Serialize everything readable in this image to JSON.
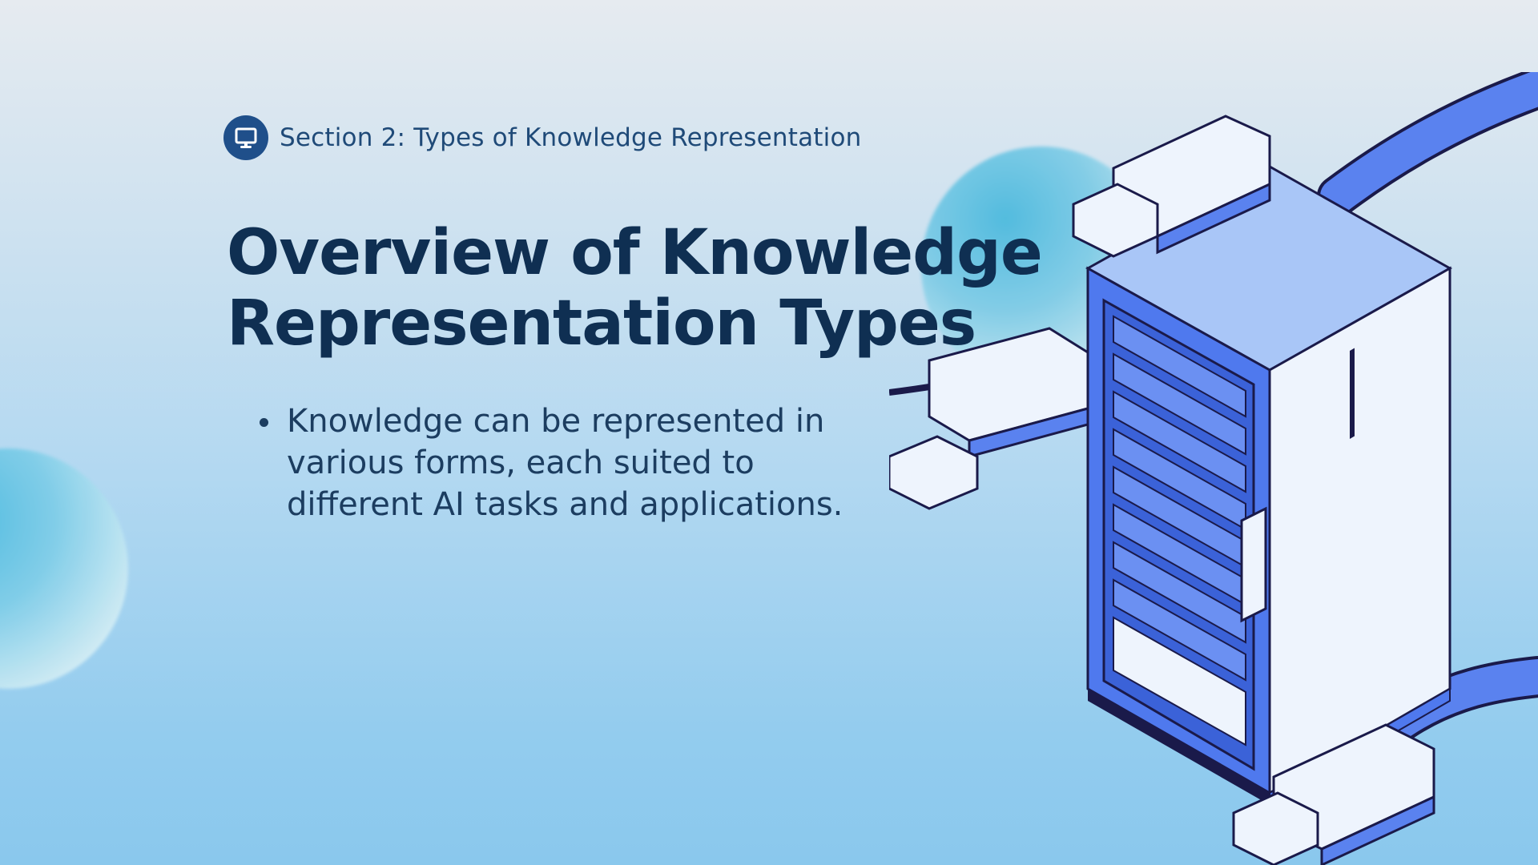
{
  "section": {
    "icon": "monitor-icon",
    "label": "Section 2: Types of Knowledge Representation"
  },
  "title": {
    "line1": "Overview of Knowledge",
    "line2": "Representation Types"
  },
  "bullets": [
    "Knowledge can be represented in various forms, each suited to different AI tasks and applications."
  ],
  "illustration": {
    "name": "server-rack-illustration"
  },
  "colors": {
    "accent": "#1f4f8a",
    "title": "#0f2f52",
    "body": "#1c3d60",
    "server_blue": "#4f79ee",
    "server_light": "#eef4fd"
  }
}
